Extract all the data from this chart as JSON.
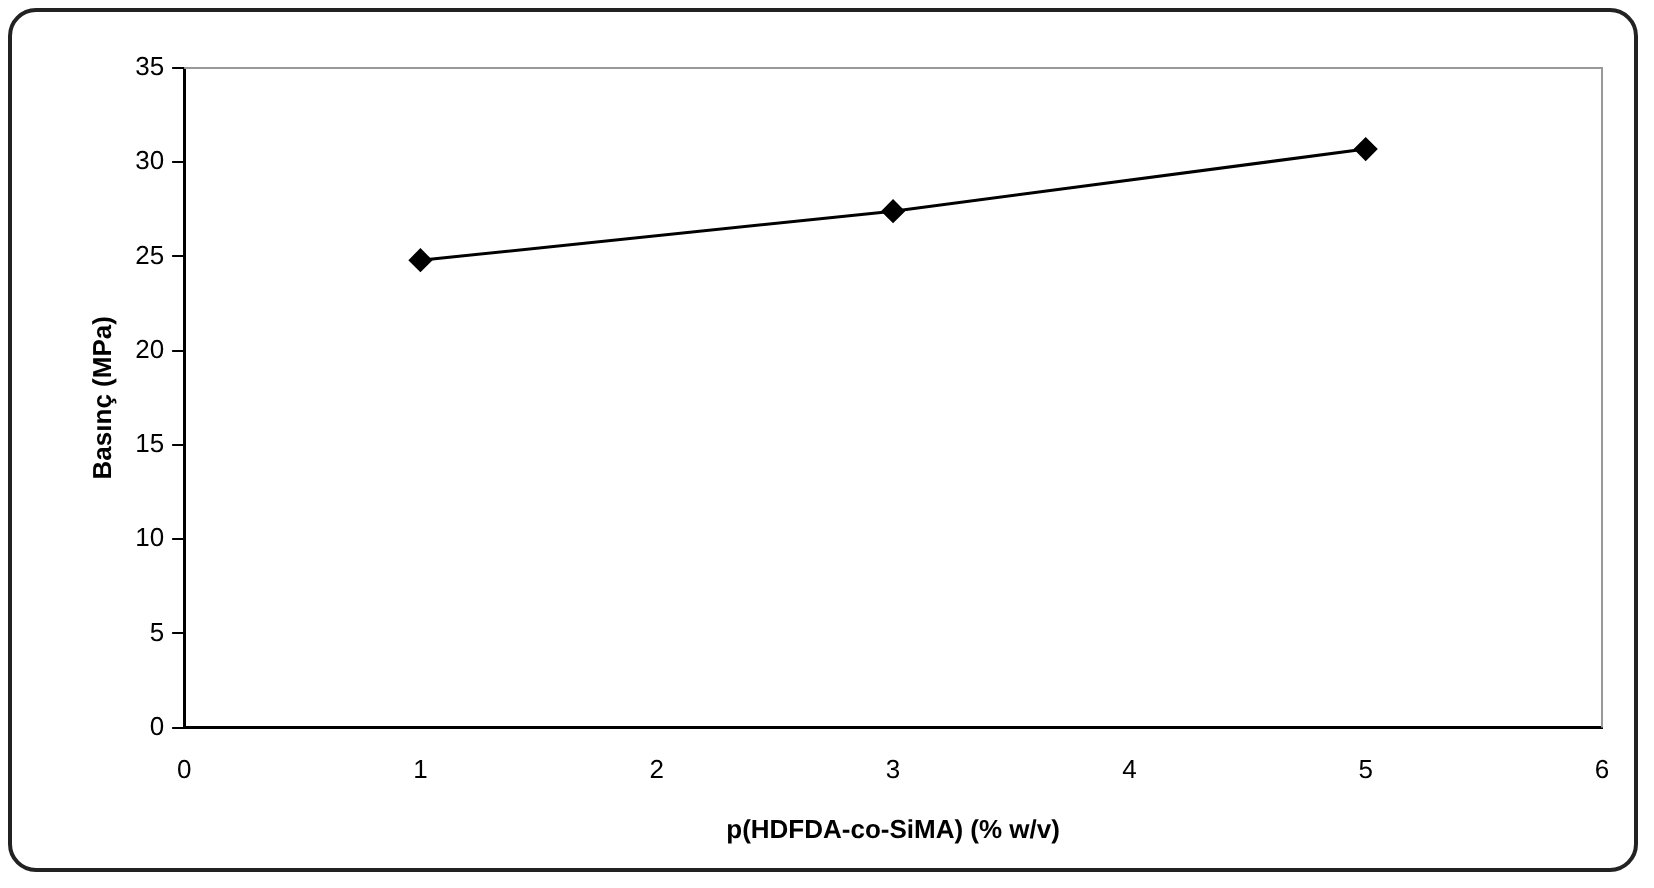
{
  "chart_data": {
    "type": "line",
    "xlabel": "p(HDFDA-co-SiMA) (% w/v)",
    "ylabel": "Basınç (MPa)",
    "x": [
      1,
      3,
      5
    ],
    "series": [
      {
        "color": "#000000",
        "values": [
          24.8,
          27.4,
          30.7
        ]
      }
    ],
    "xlim": [
      0,
      6
    ],
    "xticks": [
      0,
      1,
      2,
      3,
      4,
      5,
      6
    ],
    "ylim": [
      0,
      35
    ],
    "yticks": [
      0,
      5,
      10,
      15,
      20,
      25,
      30,
      35
    ],
    "grid": false,
    "legend": false,
    "marker": "diamond",
    "line_style": "solid"
  }
}
